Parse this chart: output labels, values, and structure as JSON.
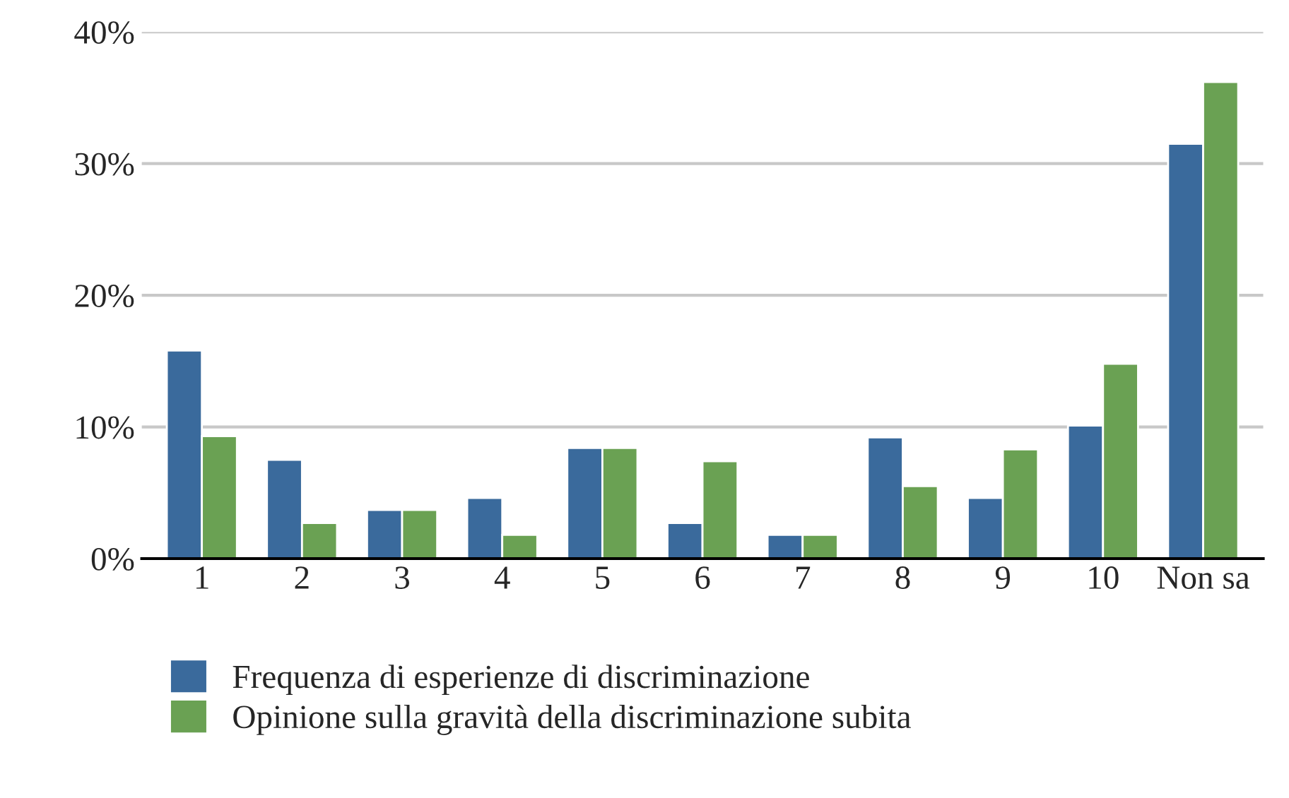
{
  "chart_data": {
    "type": "bar",
    "categories": [
      "1",
      "2",
      "3",
      "4",
      "5",
      "6",
      "7",
      "8",
      "9",
      "10",
      "Non sa"
    ],
    "series": [
      {
        "name": "Frequenza di esperienze di discriminazione",
        "color": "#3a6a9c",
        "values": [
          15.8,
          7.5,
          3.7,
          4.6,
          8.4,
          2.7,
          1.8,
          9.2,
          4.6,
          10.1,
          31.5
        ]
      },
      {
        "name": "Opinione sulla gravità della discriminazione subita",
        "color": "#6aa153",
        "values": [
          9.3,
          2.7,
          3.7,
          1.8,
          8.4,
          7.4,
          1.8,
          5.5,
          8.3,
          14.8,
          36.2
        ]
      }
    ],
    "ylim": [
      0,
      40
    ],
    "yticks": [
      {
        "value": 0,
        "label": "0%"
      },
      {
        "value": 10,
        "label": "10%"
      },
      {
        "value": 20,
        "label": "20%"
      },
      {
        "value": 30,
        "label": "30%"
      },
      {
        "value": 40,
        "label": "40%"
      }
    ],
    "grid": "y",
    "legend": "bottom"
  }
}
